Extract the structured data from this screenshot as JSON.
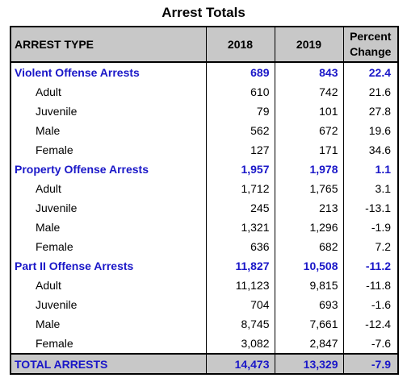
{
  "title": "Arrest Totals",
  "headers": {
    "type": "ARREST TYPE",
    "y2018": "2018",
    "y2019": "2019",
    "pct_line1": "Percent",
    "pct_line2": "Change"
  },
  "categories": [
    {
      "label": "Violent Offense Arrests",
      "y2018": "689",
      "y2019": "843",
      "pct": "22.4",
      "rows": [
        {
          "label": "Adult",
          "y2018": "610",
          "y2019": "742",
          "pct": "21.6"
        },
        {
          "label": "Juvenile",
          "y2018": "79",
          "y2019": "101",
          "pct": "27.8"
        },
        {
          "label": "Male",
          "y2018": "562",
          "y2019": "672",
          "pct": "19.6"
        },
        {
          "label": "Female",
          "y2018": "127",
          "y2019": "171",
          "pct": "34.6"
        }
      ]
    },
    {
      "label": "Property Offense Arrests",
      "y2018": "1,957",
      "y2019": "1,978",
      "pct": "1.1",
      "rows": [
        {
          "label": "Adult",
          "y2018": "1,712",
          "y2019": "1,765",
          "pct": "3.1"
        },
        {
          "label": "Juvenile",
          "y2018": "245",
          "y2019": "213",
          "pct": "-13.1"
        },
        {
          "label": "Male",
          "y2018": "1,321",
          "y2019": "1,296",
          "pct": "-1.9"
        },
        {
          "label": "Female",
          "y2018": "636",
          "y2019": "682",
          "pct": "7.2"
        }
      ]
    },
    {
      "label": "Part II Offense Arrests",
      "y2018": "11,827",
      "y2019": "10,508",
      "pct": "-11.2",
      "rows": [
        {
          "label": "Adult",
          "y2018": "11,123",
          "y2019": "9,815",
          "pct": "-11.8"
        },
        {
          "label": "Juvenile",
          "y2018": "704",
          "y2019": "693",
          "pct": "-1.6"
        },
        {
          "label": "Male",
          "y2018": "8,745",
          "y2019": "7,661",
          "pct": "-12.4"
        },
        {
          "label": "Female",
          "y2018": "3,082",
          "y2019": "2,847",
          "pct": "-7.6"
        }
      ]
    }
  ],
  "total": {
    "label": "TOTAL ARRESTS",
    "y2018": "14,473",
    "y2019": "13,329",
    "pct": "-7.9"
  },
  "colors": {
    "category_text": "#1a17c8",
    "header_background": "#c8c8c8",
    "border": "#000000"
  }
}
